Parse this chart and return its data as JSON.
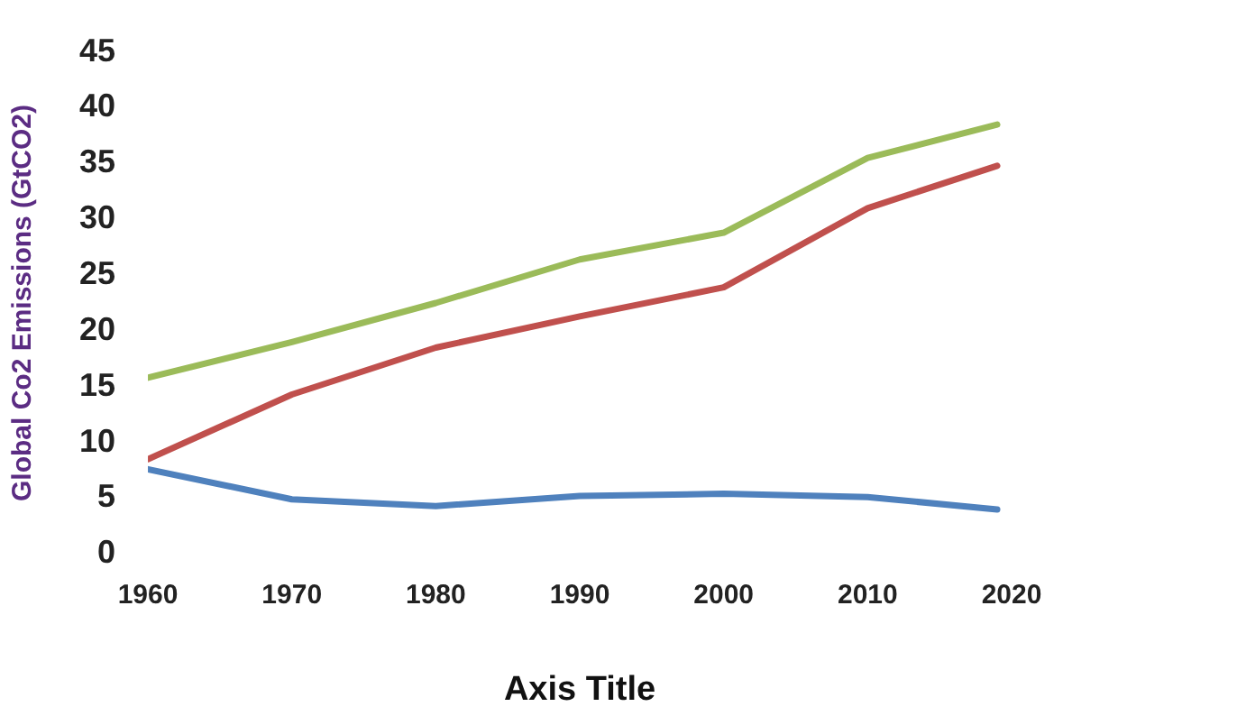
{
  "chart_data": {
    "type": "line",
    "xlabel": "Axis Title",
    "ylabel": "Global Co2 Emissions (GtCO2)",
    "x": [
      1960,
      1970,
      1980,
      1990,
      2000,
      2010,
      2019
    ],
    "series": [
      {
        "color": "#9bbb59",
        "values": [
          15.8,
          19,
          22.5,
          26.4,
          28.8,
          35.5,
          38.5
        ]
      },
      {
        "color": "#c0504d",
        "values": [
          8.5,
          14.3,
          18.5,
          21.3,
          23.9,
          31,
          34.8
        ]
      },
      {
        "color": "#4f81bd",
        "values": [
          7.6,
          4.9,
          4.3,
          5.2,
          5.4,
          5.1,
          4.0
        ]
      }
    ],
    "xlim": [
      1960,
      2020
    ],
    "xticks": [
      1960,
      1970,
      1980,
      1990,
      2000,
      2010,
      2020
    ],
    "ylim": [
      0,
      45
    ],
    "yticks": [
      0,
      5,
      10,
      15,
      20,
      25,
      30,
      35,
      40,
      45
    ],
    "grid": false,
    "legend": false,
    "marker": "none",
    "line_style": "solid"
  }
}
